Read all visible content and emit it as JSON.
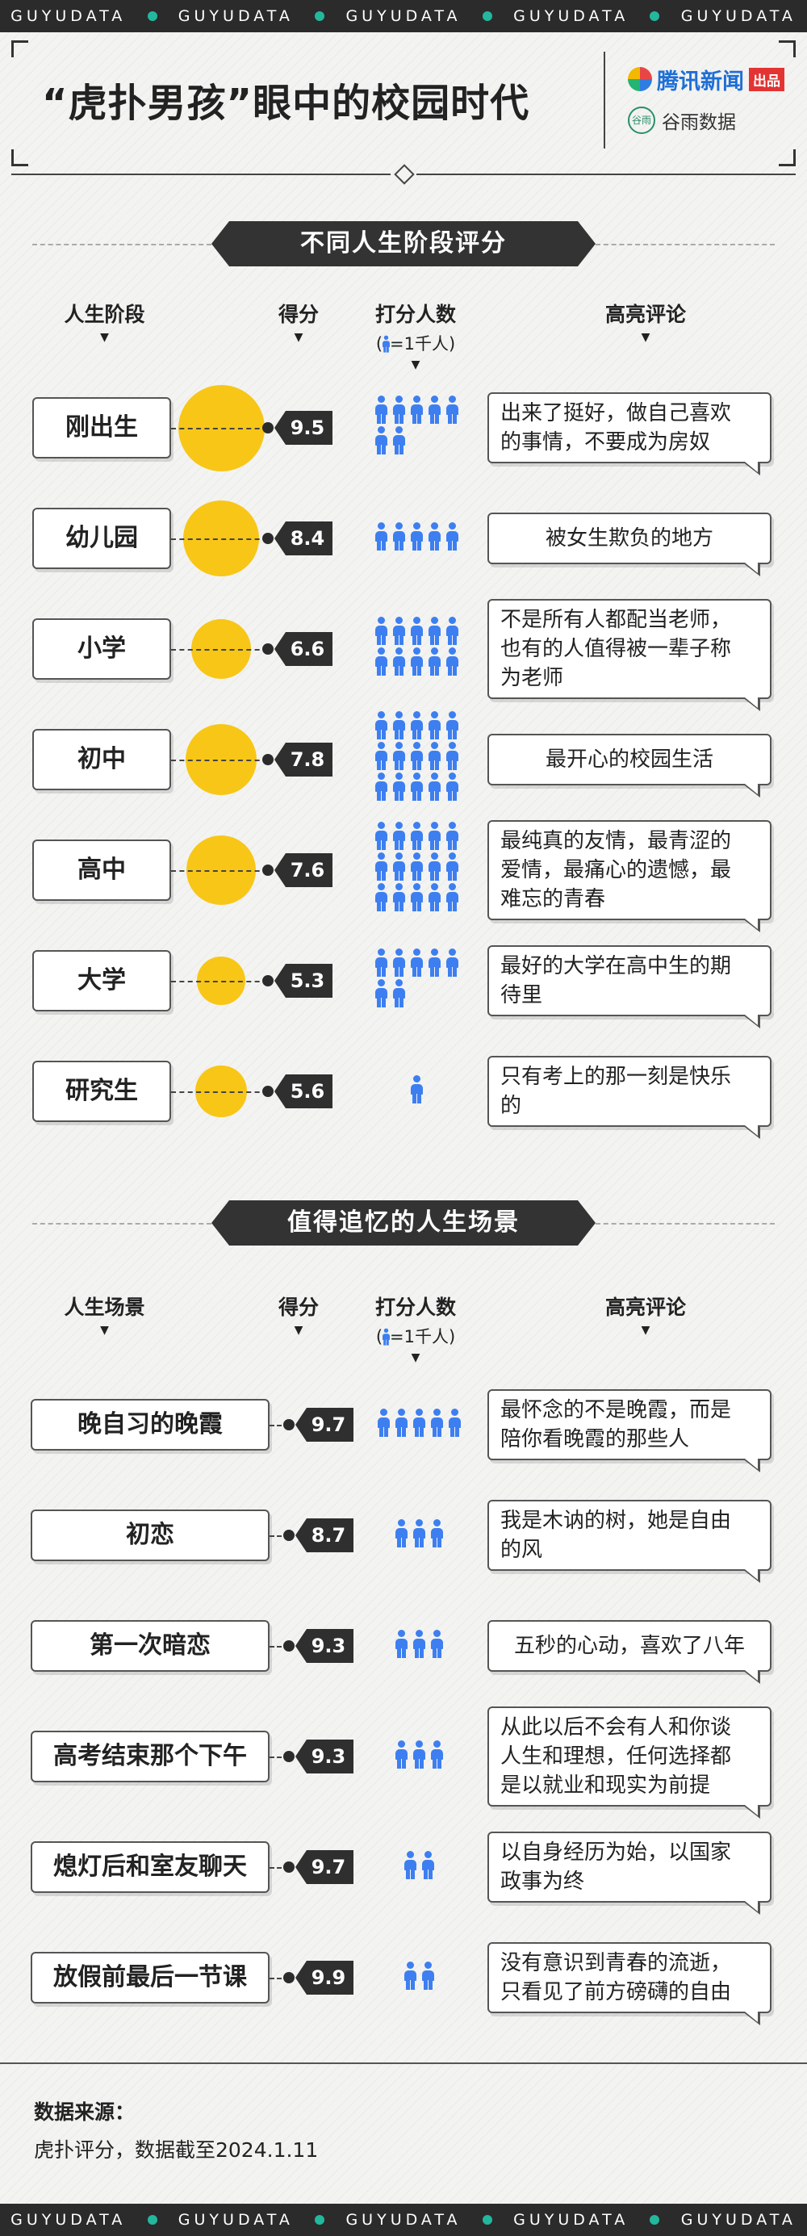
{
  "ticker": {
    "items": [
      "GUYUDATA",
      "GUYUDATA",
      "GUYUDATA",
      "GUYUDATA",
      "GUYUDATA"
    ]
  },
  "header": {
    "title": "“虎扑男孩”眼中的校园时代",
    "brand1_name": "腾讯新闻",
    "brand1_tag": "出品",
    "brand2_name": "谷雨数据",
    "brand2_seal": "谷雨"
  },
  "colors": {
    "circle": "#f8c617",
    "person": "#3d7ff0",
    "dark": "#2f2f2f",
    "ticker_dot": "#23b89e"
  },
  "chart_data": [
    {
      "type": "table",
      "title": "不同人生阶段评分",
      "columns": [
        "人生阶段",
        "得分",
        "打分人数",
        "高亮评论"
      ],
      "people_unit_label": "=1千人",
      "categories": [
        "刚出生",
        "幼儿园",
        "小学",
        "初中",
        "高中",
        "大学",
        "研究生"
      ],
      "values": [
        9.5,
        8.4,
        6.6,
        7.8,
        7.6,
        5.3,
        5.6
      ],
      "raters_thousands": [
        7,
        5,
        10,
        15,
        15,
        7,
        1
      ],
      "comments": [
        [
          "出来了挺好，做自己喜欢",
          "的事情，不要成为房奴"
        ],
        [
          "被女生欺负的地方"
        ],
        [
          "不是所有人都配当老师，",
          "也有的人值得被一辈子称",
          "为老师"
        ],
        [
          "最开心的校园生活"
        ],
        [
          "最纯真的友情，最青涩的",
          "爱情，最痛心的遗憾，最",
          "难忘的青春"
        ],
        [
          "最好的大学在高中生的期",
          "待里"
        ],
        [
          "只有考上的那一刻是快乐",
          "的"
        ]
      ]
    },
    {
      "type": "table",
      "title": "值得追忆的人生场景",
      "columns": [
        "人生场景",
        "得分",
        "打分人数",
        "高亮评论"
      ],
      "people_unit_label": "=1千人",
      "categories": [
        "晚自习的晚霞",
        "初恋",
        "第一次暗恋",
        "高考结束那个下午",
        "熄灯后和室友聊天",
        "放假前最后一节课"
      ],
      "values": [
        9.7,
        8.7,
        9.3,
        9.3,
        9.7,
        9.9
      ],
      "raters_thousands": [
        5,
        3,
        3,
        3,
        2,
        2
      ],
      "comments": [
        [
          "最怀念的不是晚霞，而是",
          "陪你看晚霞的那些人"
        ],
        [
          "我是木讷的树，她是自由",
          "的风"
        ],
        [
          "五秒的心动，喜欢了八年"
        ],
        [
          "从此以后不会有人和你谈",
          "人生和理想，任何选择都",
          "是以就业和现实为前提"
        ],
        [
          "以自身经历为始，以国家",
          "政事为终"
        ],
        [
          "没有意识到青春的流逝，",
          "只看见了前方磅礴的自由"
        ]
      ]
    }
  ],
  "footer": {
    "source_label": "数据来源：",
    "source_text": "虎扑评分，数据截至2024.1.11"
  }
}
